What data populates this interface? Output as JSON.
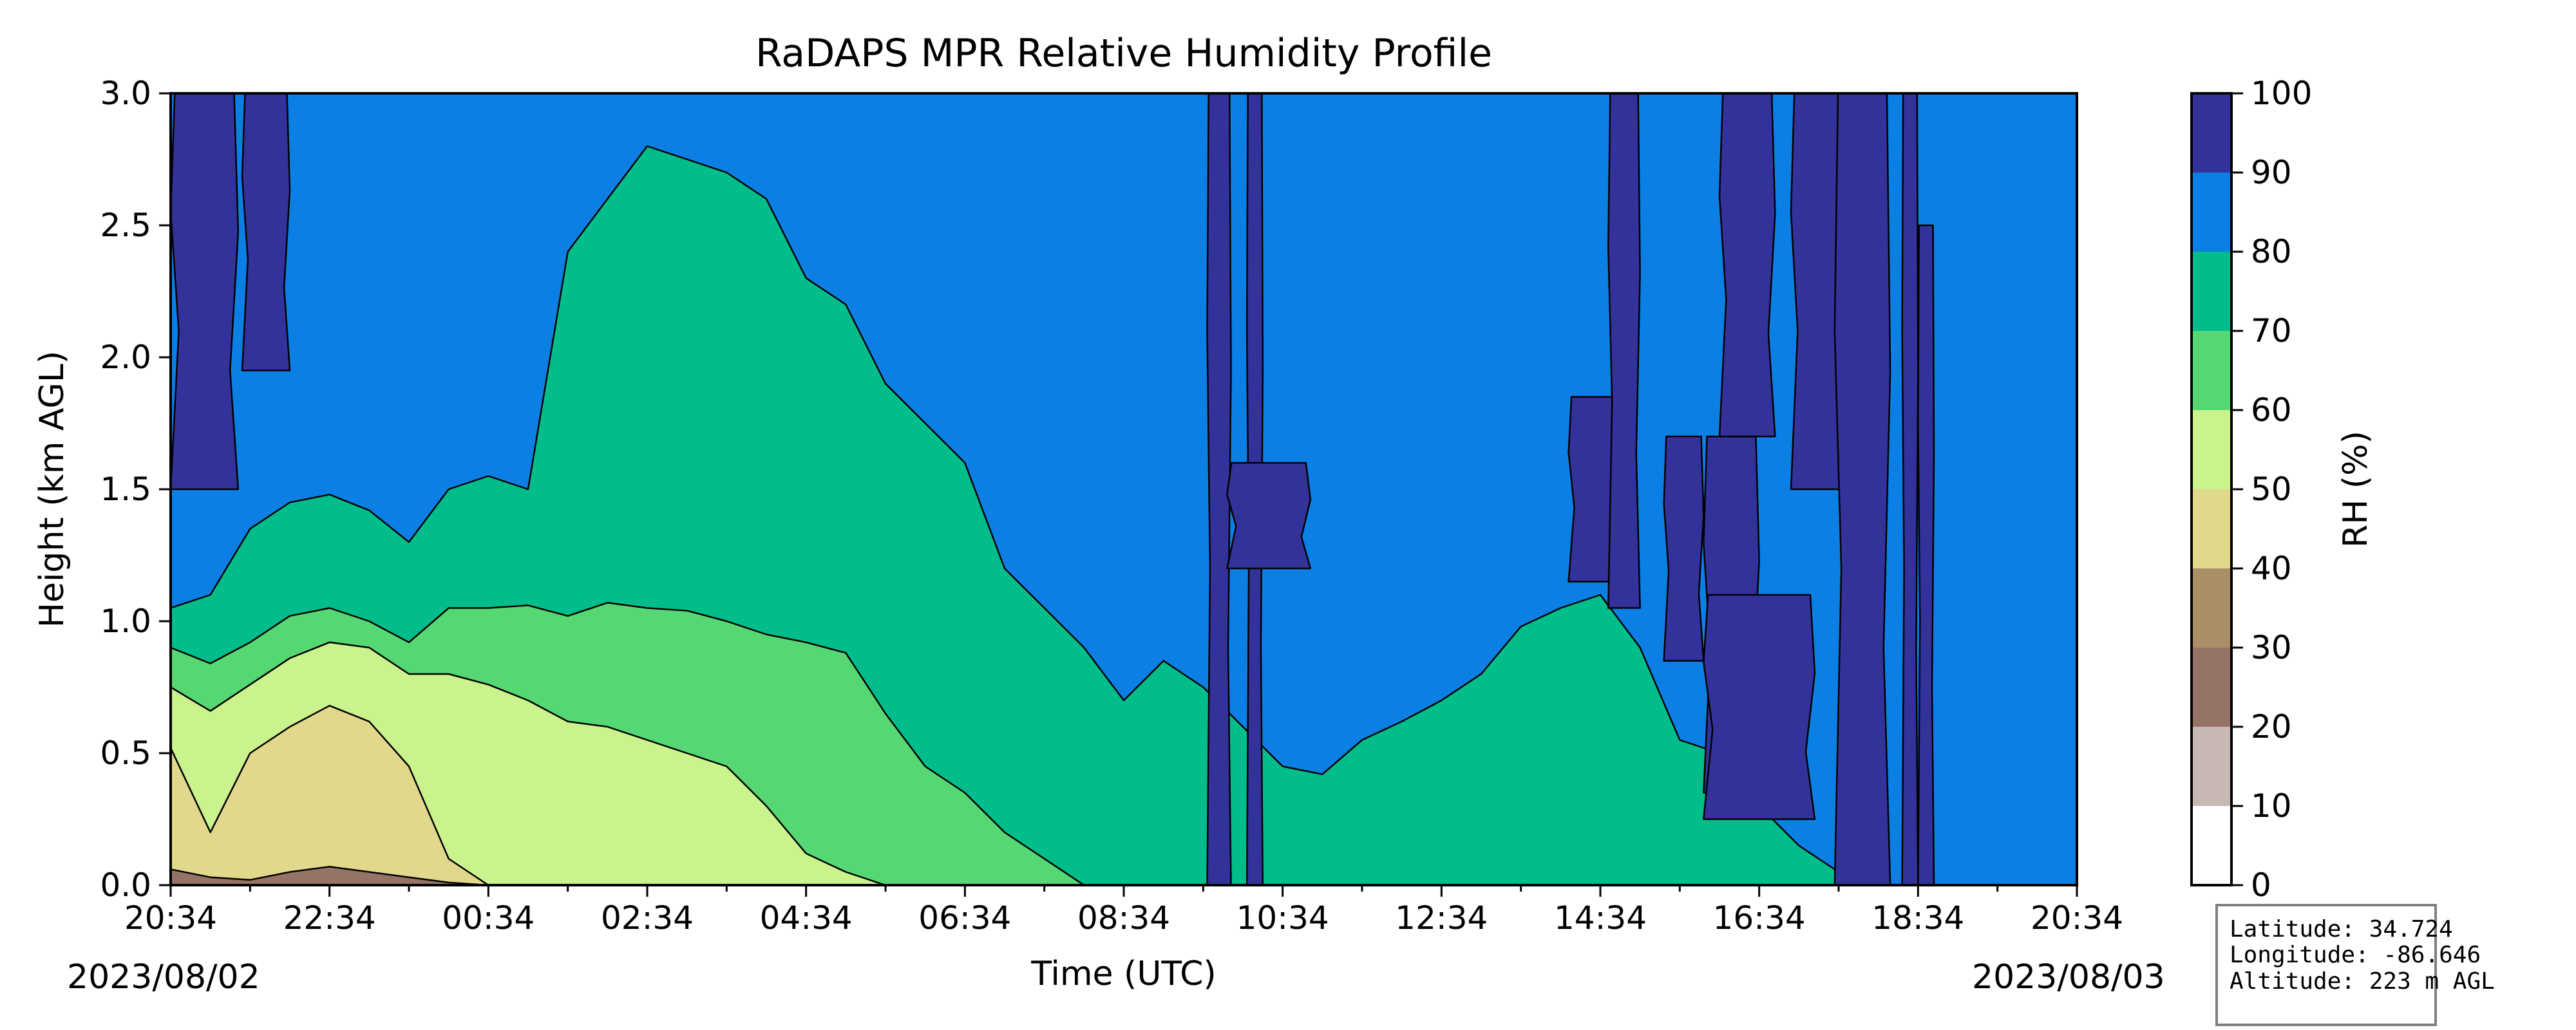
{
  "chart_data": {
    "type": "heatmap",
    "subtype": "filled-contour",
    "title": "RaDAPS MPR Relative Humidity Profile",
    "xlabel": "Time (UTC)",
    "ylabel": "Height (km AGL)",
    "x_ticks": [
      "20:34",
      "22:34",
      "00:34",
      "02:34",
      "04:34",
      "06:34",
      "08:34",
      "10:34",
      "12:34",
      "14:34",
      "16:34",
      "18:34",
      "20:34"
    ],
    "x_tick_hours": [
      0,
      2,
      4,
      6,
      8,
      10,
      12,
      14,
      16,
      18,
      20,
      22,
      24
    ],
    "start_date": "2023/08/02",
    "end_date": "2023/08/03",
    "xlim_hours": [
      0,
      24
    ],
    "y_ticks": [
      "0.0",
      "0.5",
      "1.0",
      "1.5",
      "2.0",
      "2.5",
      "3.0"
    ],
    "ylim": [
      0,
      3.0
    ],
    "colorbar": {
      "label": "RH (%)",
      "ticks": [
        "0",
        "10",
        "20",
        "30",
        "40",
        "50",
        "60",
        "70",
        "80",
        "90",
        "100"
      ],
      "levels": [
        0,
        10,
        20,
        30,
        40,
        50,
        60,
        70,
        80,
        90,
        100
      ],
      "colors": [
        "#ffffff",
        "#c8b8b3",
        "#957467",
        "#a98f66",
        "#e2d88c",
        "#caf28d",
        "#55d873",
        "#00bd8b",
        "#0b7fe3",
        "#33329a"
      ]
    },
    "rh_band_tops_km": {
      "hours": [
        0,
        0.5,
        1,
        1.5,
        2,
        2.5,
        3,
        3.5,
        4,
        4.5,
        5,
        5.5,
        6,
        6.5,
        7,
        7.5,
        8,
        8.5,
        9,
        9.5,
        10,
        10.5,
        11,
        11.5,
        12,
        12.5,
        13,
        13.5,
        14,
        14.5,
        15,
        15.5,
        16,
        16.5,
        17,
        17.5,
        18,
        18.5,
        19,
        19.5,
        20,
        20.5,
        21,
        21.5,
        22,
        22.5,
        23,
        23.5,
        24
      ],
      "rh_lt_30": [
        0.06,
        0.03,
        0.02,
        0.05,
        0.07,
        0.05,
        0.03,
        0.01,
        0,
        0,
        0,
        0,
        0,
        0,
        0,
        0,
        0,
        0,
        0,
        0,
        0,
        0,
        0,
        0,
        0,
        0,
        0,
        0,
        0,
        0,
        0,
        0,
        0,
        0,
        0,
        0,
        0,
        0,
        0,
        0,
        0,
        0,
        0,
        0,
        0,
        0,
        0,
        0,
        0
      ],
      "rh_lt_50": [
        0.52,
        0.2,
        0.5,
        0.6,
        0.68,
        0.62,
        0.45,
        0.1,
        0,
        0,
        0,
        0,
        0,
        0,
        0,
        0,
        0,
        0,
        0,
        0,
        0,
        0,
        0,
        0,
        0,
        0,
        0,
        0,
        0,
        0,
        0,
        0,
        0,
        0,
        0,
        0,
        0,
        0,
        0,
        0,
        0,
        0,
        0,
        0,
        0,
        0,
        0,
        0,
        0
      ],
      "rh_lt_60": [
        0.75,
        0.66,
        0.76,
        0.86,
        0.92,
        0.9,
        0.8,
        0.8,
        0.76,
        0.7,
        0.62,
        0.6,
        0.55,
        0.5,
        0.45,
        0.3,
        0.12,
        0.05,
        0,
        0,
        0,
        0,
        0,
        0,
        0,
        0,
        0,
        0,
        0,
        0,
        0,
        0,
        0,
        0,
        0,
        0,
        0,
        0,
        0,
        0,
        0,
        0,
        0,
        0,
        0,
        0,
        0,
        0,
        0
      ],
      "rh_lt_70": [
        0.9,
        0.84,
        0.92,
        1.02,
        1.05,
        1.0,
        0.92,
        1.05,
        1.05,
        1.06,
        1.02,
        1.07,
        1.05,
        1.04,
        1.0,
        0.95,
        0.92,
        0.88,
        0.65,
        0.45,
        0.35,
        0.2,
        0.1,
        0,
        0,
        0,
        0,
        0,
        0,
        0,
        0,
        0,
        0,
        0,
        0,
        0,
        0,
        0,
        0,
        0,
        0,
        0,
        0,
        0,
        0,
        0,
        0,
        0,
        0
      ],
      "rh_lt_80": [
        1.05,
        1.1,
        1.35,
        1.45,
        1.48,
        1.42,
        1.3,
        1.5,
        1.55,
        1.5,
        2.4,
        2.6,
        2.8,
        2.75,
        2.7,
        2.6,
        2.3,
        2.2,
        1.9,
        1.75,
        1.6,
        1.2,
        1.05,
        0.9,
        0.7,
        0.85,
        0.75,
        0.6,
        0.45,
        0.42,
        0.55,
        0.62,
        0.7,
        0.8,
        0.98,
        1.05,
        1.1,
        0.9,
        0.55,
        0.5,
        0.3,
        0.15,
        0.05,
        0,
        0,
        0,
        0,
        0,
        0
      ]
    },
    "rh_gt_90_regions": [
      {
        "hours": [
          0.0,
          0.85
        ],
        "km": [
          1.5,
          3.0
        ]
      },
      {
        "hours": [
          0.9,
          1.5
        ],
        "km": [
          1.95,
          3.0
        ]
      },
      {
        "hours": [
          13.05,
          13.35
        ],
        "km": [
          0.0,
          3.0
        ]
      },
      {
        "hours": [
          13.55,
          13.75
        ],
        "km": [
          0.0,
          3.0
        ]
      },
      {
        "hours": [
          13.3,
          14.35
        ],
        "km": [
          1.2,
          1.6
        ]
      },
      {
        "hours": [
          17.6,
          18.2
        ],
        "km": [
          1.15,
          1.85
        ]
      },
      {
        "hours": [
          18.1,
          18.5
        ],
        "km": [
          1.05,
          3.0
        ]
      },
      {
        "hours": [
          18.8,
          19.3
        ],
        "km": [
          0.85,
          1.7
        ]
      },
      {
        "hours": [
          19.3,
          20.0
        ],
        "km": [
          0.35,
          1.7
        ]
      },
      {
        "hours": [
          19.3,
          20.7
        ],
        "km": [
          0.25,
          1.1
        ]
      },
      {
        "hours": [
          19.5,
          20.2
        ],
        "km": [
          1.7,
          3.0
        ]
      },
      {
        "hours": [
          20.4,
          21.1
        ],
        "km": [
          1.5,
          3.0
        ]
      },
      {
        "hours": [
          20.95,
          21.65
        ],
        "km": [
          0.0,
          3.0
        ]
      },
      {
        "hours": [
          21.8,
          22.0
        ],
        "km": [
          0.0,
          3.0
        ]
      },
      {
        "hours": [
          22.0,
          22.2
        ],
        "km": [
          0.0,
          2.5
        ]
      }
    ],
    "location": {
      "latitude": "Latitude: 34.724",
      "longitude": "Longitude: -86.646",
      "altitude": "Altitude: 223 m AGL"
    }
  }
}
